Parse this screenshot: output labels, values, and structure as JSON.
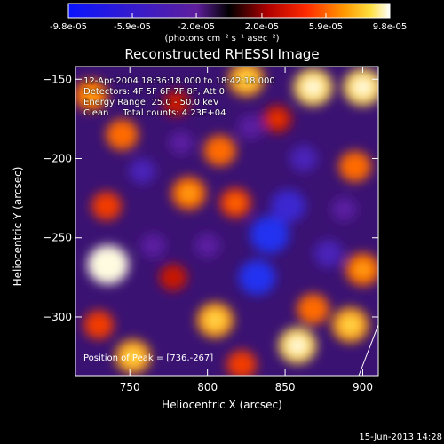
{
  "title": "Reconstructed RHESSI Image",
  "colorbar": {
    "tick_labels": [
      "-9.8e-05",
      "-5.9e-05",
      "-2.0e-05",
      "2.0e-05",
      "5.9e-05",
      "9.8e-05"
    ],
    "unit_text": "(photons cm⁻² s⁻¹ asec⁻²)",
    "range": [
      -9.8e-05,
      9.8e-05
    ]
  },
  "info_lines": [
    "12-Apr-2004 18:36:18.000 to 18:42:18.000",
    "Detectors: 4F 5F 6F 7F 8F, Att 0",
    "Energy Range: 25.0 - 50.0 keV",
    "Clean     Total counts: 4.23E+04"
  ],
  "peak_text": "Position of Peak = [736,-267]",
  "timestamp": "15-Jun-2013 14:28",
  "chart_data": {
    "type": "heatmap",
    "title": "Reconstructed RHESSI Image",
    "xlabel": "Heliocentric X (arcsec)",
    "ylabel": "Heliocentric Y (arcsec)",
    "xlim": [
      715,
      910
    ],
    "ylim": [
      -337,
      -142
    ],
    "x_ticks": [
      750,
      800,
      850,
      900
    ],
    "y_ticks": [
      -150,
      -200,
      -250,
      -300
    ],
    "x_tick_labels": [
      "750",
      "800",
      "850",
      "900"
    ],
    "y_tick_labels": [
      "−150",
      "−200",
      "−250",
      "−300"
    ],
    "value_range": [
      -9.8e-05,
      9.8e-05
    ],
    "colormap": "IDL red-temperature (blue negative, purple/black near zero, red-orange-yellow-white positive)",
    "peak_position": [
      736,
      -267
    ],
    "features": [
      {
        "x": 736,
        "y": -267,
        "value": 9.8e-05
      },
      {
        "x": 868,
        "y": -155,
        "value": 9e-05
      },
      {
        "x": 900,
        "y": -155,
        "value": 9e-05
      },
      {
        "x": 825,
        "y": -150,
        "value": 7.5e-05
      },
      {
        "x": 725,
        "y": -160,
        "value": 6.5e-05
      },
      {
        "x": 745,
        "y": -185,
        "value": 6e-05
      },
      {
        "x": 788,
        "y": -222,
        "value": 7e-05
      },
      {
        "x": 808,
        "y": -195,
        "value": 6e-05
      },
      {
        "x": 818,
        "y": -228,
        "value": 5.5e-05
      },
      {
        "x": 895,
        "y": -205,
        "value": 6e-05
      },
      {
        "x": 735,
        "y": -230,
        "value": 5e-05
      },
      {
        "x": 752,
        "y": -325,
        "value": 7.5e-05
      },
      {
        "x": 805,
        "y": -302,
        "value": 8e-05
      },
      {
        "x": 822,
        "y": -330,
        "value": 5e-05
      },
      {
        "x": 858,
        "y": -318,
        "value": 8.5e-05
      },
      {
        "x": 868,
        "y": -295,
        "value": 6e-05
      },
      {
        "x": 900,
        "y": -270,
        "value": 7e-05
      },
      {
        "x": 892,
        "y": -305,
        "value": 8e-05
      },
      {
        "x": 730,
        "y": -305,
        "value": 5e-05
      },
      {
        "x": 778,
        "y": -275,
        "value": 4e-05
      },
      {
        "x": 845,
        "y": -175,
        "value": 4.5e-05
      },
      {
        "x": 780,
        "y": -165,
        "value": 3.5e-05
      },
      {
        "x": 758,
        "y": -208,
        "value": -3.5e-05
      },
      {
        "x": 765,
        "y": -255,
        "value": -3e-05
      },
      {
        "x": 783,
        "y": -190,
        "value": -2.5e-05
      },
      {
        "x": 800,
        "y": -255,
        "value": -3e-05
      },
      {
        "x": 840,
        "y": -248,
        "value": -9e-05
      },
      {
        "x": 832,
        "y": -275,
        "value": -8e-05
      },
      {
        "x": 852,
        "y": -230,
        "value": -7e-05
      },
      {
        "x": 878,
        "y": -260,
        "value": -4.5e-05
      },
      {
        "x": 862,
        "y": -200,
        "value": -4e-05
      },
      {
        "x": 828,
        "y": -180,
        "value": -3e-05
      },
      {
        "x": 888,
        "y": -232,
        "value": -3e-05
      }
    ]
  }
}
